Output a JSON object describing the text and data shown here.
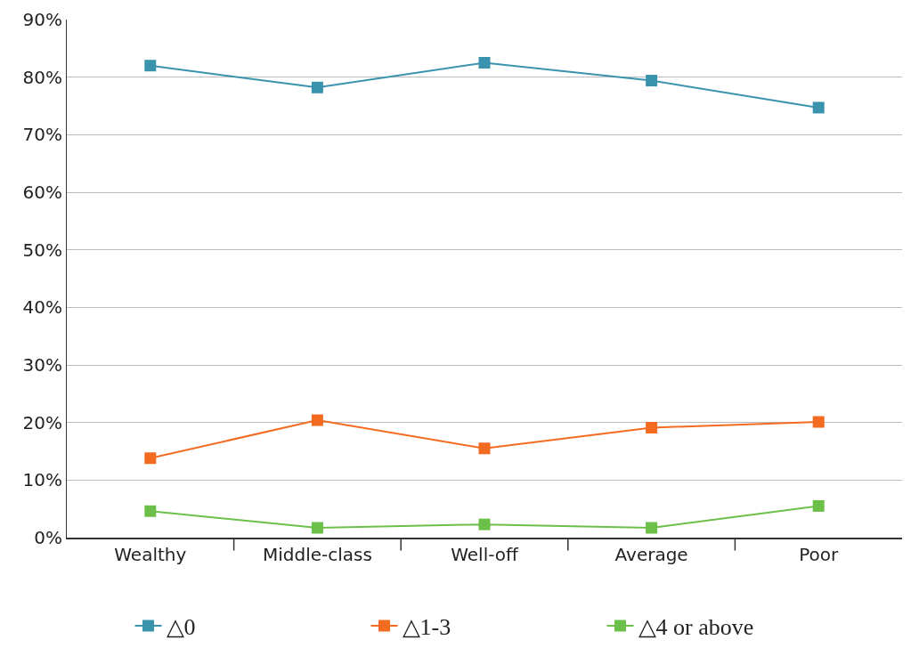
{
  "chart_data": {
    "type": "line",
    "categories": [
      "Wealthy",
      "Middle-class",
      "Well-off",
      "Average",
      "Poor"
    ],
    "series": [
      {
        "name": "△0",
        "color": "#3a93ad",
        "values": [
          82,
          78.2,
          82.5,
          79.4,
          74.7
        ]
      },
      {
        "name": "△1-3",
        "color": "#f26b21",
        "values": [
          13.8,
          20.4,
          15.5,
          19.1,
          20.1
        ]
      },
      {
        "name": "△4 or above",
        "color": "#6cc04a",
        "values": [
          4.6,
          1.7,
          2.3,
          1.7,
          5.5
        ]
      }
    ],
    "ylim": [
      0,
      90
    ],
    "yticks": [
      {
        "value": 0,
        "label": "0%"
      },
      {
        "value": 10,
        "label": "10%"
      },
      {
        "value": 20,
        "label": "20%"
      },
      {
        "value": 30,
        "label": "30%"
      },
      {
        "value": 40,
        "label": "40%"
      },
      {
        "value": 50,
        "label": "50%"
      },
      {
        "value": 60,
        "label": "60%"
      },
      {
        "value": 70,
        "label": "70%"
      },
      {
        "value": 80,
        "label": "80%"
      },
      {
        "value": 90,
        "label": "90%"
      }
    ],
    "grid": "y",
    "legend": "bottom",
    "marker": "square",
    "line_style": "solid"
  }
}
